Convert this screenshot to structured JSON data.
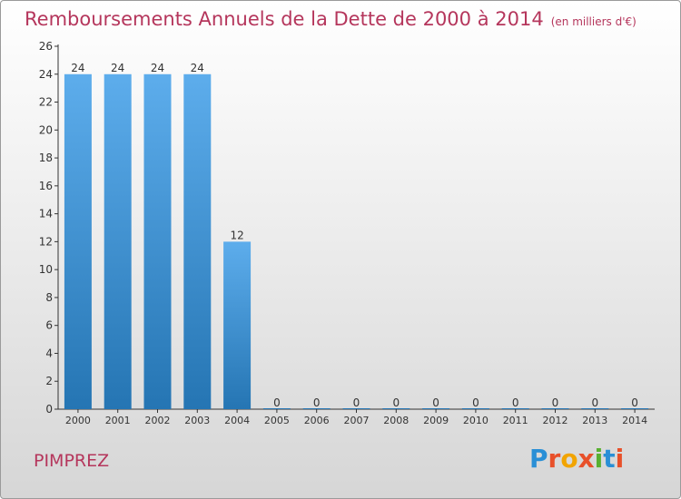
{
  "header": {
    "title": "Remboursements Annuels de la Dette de 2000 à 2014",
    "unit": "(en milliers d'€)"
  },
  "footer": {
    "commune": "PIMPREZ",
    "logo_text": "Proxiti",
    "logo_colors": [
      "#2a8fd6",
      "#e8502a",
      "#f2a400",
      "#e8502a",
      "#58b030",
      "#2a8fd6",
      "#e8502a"
    ]
  },
  "colors": {
    "title": "#b5365c",
    "bar_top": "#5dadec",
    "bar_bottom": "#2575b3",
    "axis": "#333333",
    "tick_text": "#333333"
  },
  "chart_data": {
    "type": "bar",
    "categories": [
      "2000",
      "2001",
      "2002",
      "2003",
      "2004",
      "2005",
      "2006",
      "2007",
      "2008",
      "2009",
      "2010",
      "2011",
      "2012",
      "2013",
      "2014"
    ],
    "values": [
      24,
      24,
      24,
      24,
      12,
      0,
      0,
      0,
      0,
      0,
      0,
      0,
      0,
      0,
      0
    ],
    "title": "Remboursements Annuels de la Dette de 2000 à 2014",
    "xlabel": "",
    "ylabel": "",
    "ylim": [
      0,
      26
    ],
    "yticks": [
      0,
      2,
      4,
      6,
      8,
      10,
      12,
      14,
      16,
      18,
      20,
      22,
      24,
      26
    ],
    "grid": false,
    "data_labels": true
  }
}
